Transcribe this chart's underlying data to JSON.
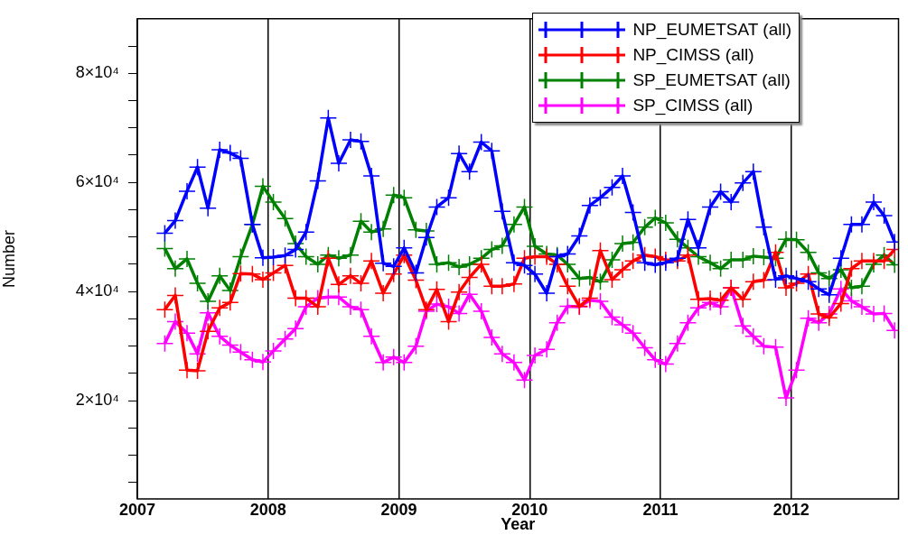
{
  "chart_data": {
    "type": "line",
    "xlabel": "Year",
    "ylabel": "Number",
    "x": [
      2007.21,
      2007.29,
      2007.38,
      2007.46,
      2007.54,
      2007.63,
      2007.71,
      2007.79,
      2007.88,
      2007.96,
      2008.04,
      2008.13,
      2008.21,
      2008.29,
      2008.38,
      2008.46,
      2008.54,
      2008.63,
      2008.71,
      2008.79,
      2008.88,
      2008.96,
      2009.04,
      2009.13,
      2009.21,
      2009.29,
      2009.38,
      2009.46,
      2009.54,
      2009.63,
      2009.71,
      2009.79,
      2009.88,
      2009.96,
      2010.04,
      2010.13,
      2010.21,
      2010.29,
      2010.38,
      2010.46,
      2010.54,
      2010.63,
      2010.71,
      2010.79,
      2010.88,
      2010.96,
      2011.04,
      2011.13,
      2011.21,
      2011.29,
      2011.38,
      2011.46,
      2011.54,
      2011.63,
      2011.71,
      2011.79,
      2011.88,
      2011.96,
      2012.04,
      2012.13,
      2012.21,
      2012.29,
      2012.38,
      2012.46,
      2012.54,
      2012.63,
      2012.71,
      2012.79
    ],
    "series": [
      {
        "name": "NP_EUMETSAT (all)",
        "color": "#0000ff",
        "values": [
          50700,
          53000,
          58400,
          62800,
          55300,
          66000,
          65400,
          64400,
          52300,
          46200,
          46300,
          46600,
          47700,
          50900,
          60300,
          71800,
          63500,
          67800,
          67500,
          61200,
          45200,
          44600,
          48000,
          43400,
          49900,
          55500,
          57200,
          65300,
          62000,
          67400,
          65800,
          54700,
          45300,
          44800,
          43200,
          39700,
          46400,
          46900,
          50200,
          55800,
          57200,
          59100,
          61200,
          54500,
          45300,
          44900,
          45300,
          46100,
          53200,
          48000,
          55500,
          58300,
          56400,
          59900,
          62000,
          51800,
          42200,
          42900,
          42400,
          41800,
          40500,
          39400,
          46100,
          52300,
          52300,
          56400,
          53900,
          49100
        ]
      },
      {
        "name": "NP_CIMSS (all)",
        "color": "#ff0000",
        "values": [
          36700,
          39300,
          25600,
          25500,
          32700,
          37000,
          38000,
          43300,
          43200,
          42200,
          43400,
          44800,
          38800,
          38800,
          37200,
          46100,
          41300,
          42900,
          41500,
          45600,
          39700,
          43200,
          46700,
          42100,
          36700,
          40400,
          34500,
          39900,
          42600,
          45000,
          41000,
          41000,
          41400,
          46100,
          46400,
          46400,
          45000,
          41000,
          37300,
          38800,
          47500,
          42200,
          44000,
          45600,
          46700,
          46400,
          45800,
          45600,
          46700,
          38600,
          38700,
          38400,
          40700,
          38600,
          41800,
          42100,
          47200,
          40700,
          41500,
          43200,
          35900,
          35200,
          37800,
          44200,
          45600,
          45600,
          45600,
          47700
        ]
      },
      {
        "name": "SP_EUMETSAT (all)",
        "color": "#008000",
        "values": [
          47900,
          44200,
          46000,
          41500,
          38200,
          42900,
          40200,
          46400,
          52300,
          59300,
          56400,
          53400,
          48800,
          46400,
          45000,
          46700,
          46100,
          46700,
          52900,
          50900,
          51500,
          57700,
          57200,
          51300,
          51100,
          45000,
          45300,
          44500,
          45000,
          46100,
          47700,
          48400,
          52300,
          55500,
          48300,
          46900,
          46700,
          45000,
          42400,
          42600,
          41800,
          45800,
          48800,
          49000,
          51800,
          53500,
          52600,
          49600,
          48000,
          46400,
          45300,
          44200,
          45800,
          45800,
          46500,
          46300,
          46100,
          49600,
          49500,
          47200,
          43400,
          42400,
          44000,
          40700,
          41000,
          45000,
          46700,
          44900
        ]
      },
      {
        "name": "SP_CIMSS (all)",
        "color": "#ff00ff",
        "values": [
          30500,
          34500,
          32400,
          28600,
          36100,
          31800,
          30200,
          28900,
          27500,
          27100,
          29100,
          31300,
          33200,
          37200,
          38800,
          39000,
          39000,
          37200,
          36700,
          31800,
          27000,
          28000,
          27000,
          30000,
          36400,
          37700,
          37200,
          36000,
          39500,
          36400,
          31600,
          28600,
          27000,
          23800,
          28300,
          29400,
          34300,
          37300,
          37200,
          38400,
          38200,
          35300,
          33900,
          32400,
          29700,
          27500,
          26700,
          30500,
          34300,
          37000,
          38000,
          37200,
          40700,
          33700,
          31800,
          30000,
          29800,
          20500,
          25600,
          35100,
          34300,
          35900,
          40500,
          38300,
          37200,
          35900,
          36000,
          32900
        ]
      }
    ],
    "xlim": [
      2007,
      2012.82
    ],
    "xticks": [
      2007,
      2008,
      2009,
      2010,
      2011,
      2012
    ],
    "ylim": [
      2000,
      90000
    ],
    "yticks": [
      {
        "value": 5000,
        "label": null
      },
      {
        "value": 10000,
        "label": null
      },
      {
        "value": 15000,
        "label": null
      },
      {
        "value": 20000,
        "label": "2×10⁴"
      },
      {
        "value": 25000,
        "label": null
      },
      {
        "value": 30000,
        "label": null
      },
      {
        "value": 35000,
        "label": null
      },
      {
        "value": 40000,
        "label": "4×10⁴"
      },
      {
        "value": 45000,
        "label": null
      },
      {
        "value": 50000,
        "label": null
      },
      {
        "value": 55000,
        "label": null
      },
      {
        "value": 60000,
        "label": "6×10⁴"
      },
      {
        "value": 65000,
        "label": null
      },
      {
        "value": 70000,
        "label": null
      },
      {
        "value": 75000,
        "label": null
      },
      {
        "value": 80000,
        "label": "8×10⁴"
      },
      {
        "value": 85000,
        "label": null
      }
    ],
    "grid": "x",
    "legend": "top right",
    "marker": "cross",
    "line_style": "solid"
  }
}
